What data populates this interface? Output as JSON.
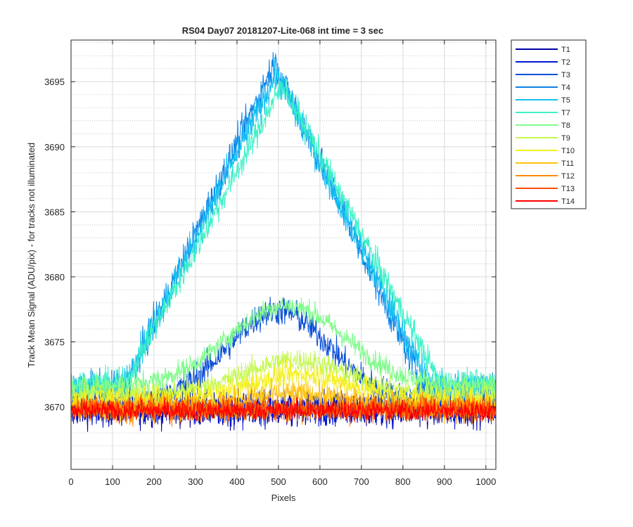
{
  "chart_data": {
    "type": "line",
    "title": "RS04 Day07 20181207-Lite-068 int time = 3 sec",
    "xlabel": "Pixels",
    "ylabel": "Track Mean Signal (ADU/pix) - for tracks not illuminated",
    "xlim": [
      0,
      1024
    ],
    "ylim": [
      3665.2,
      3698.2
    ],
    "xticks": [
      0,
      100,
      200,
      300,
      400,
      500,
      600,
      700,
      800,
      900,
      1000
    ],
    "yticks": [
      3670,
      3675,
      3680,
      3685,
      3690,
      3695
    ],
    "grid": true,
    "minor_grid": true,
    "legend_position": "outside-top-right",
    "series": [
      {
        "name": "T1",
        "color": "#0000aa",
        "profile": "flat",
        "baseline": 3669.8,
        "peak_x": 512,
        "peak_height": 0,
        "width": 200,
        "noise": 1.7
      },
      {
        "name": "T2",
        "color": "#0018d6",
        "profile": "flat",
        "baseline": 3669.9,
        "peak_x": 512,
        "peak_height": 0,
        "width": 200,
        "noise": 1.7
      },
      {
        "name": "T3",
        "color": "#0a4ed8",
        "profile": "bump",
        "baseline": 3670.4,
        "peak_x": 500,
        "peak_height": 7.0,
        "width": 220,
        "noise": 1.5
      },
      {
        "name": "T4",
        "color": "#0a82e6",
        "profile": "triangle",
        "baseline": 3671.5,
        "peak_x": 490,
        "peak_height": 25.0,
        "width": 360,
        "noise": 1.6
      },
      {
        "name": "T5",
        "color": "#14bff2",
        "profile": "triangle",
        "baseline": 3671.6,
        "peak_x": 495,
        "peak_height": 24.0,
        "width": 370,
        "noise": 1.6
      },
      {
        "name": "T7",
        "color": "#3cf0c8",
        "profile": "triangle",
        "baseline": 3671.8,
        "peak_x": 510,
        "peak_height": 23.0,
        "width": 380,
        "noise": 1.4
      },
      {
        "name": "T8",
        "color": "#7efb8a",
        "profile": "bump",
        "baseline": 3671.6,
        "peak_x": 520,
        "peak_height": 6.2,
        "width": 250,
        "noise": 1.1
      },
      {
        "name": "T9",
        "color": "#c3f84c",
        "profile": "bump",
        "baseline": 3671.0,
        "peak_x": 540,
        "peak_height": 2.6,
        "width": 220,
        "noise": 1.2
      },
      {
        "name": "T10",
        "color": "#f5f01e",
        "profile": "bump",
        "baseline": 3670.5,
        "peak_x": 550,
        "peak_height": 2.0,
        "width": 220,
        "noise": 1.2
      },
      {
        "name": "T11",
        "color": "#ffc20a",
        "profile": "bump",
        "baseline": 3670.0,
        "peak_x": 540,
        "peak_height": 1.0,
        "width": 220,
        "noise": 1.3
      },
      {
        "name": "T12",
        "color": "#ff8a00",
        "profile": "flat",
        "baseline": 3669.8,
        "peak_x": 512,
        "peak_height": 0,
        "width": 200,
        "noise": 1.3
      },
      {
        "name": "T13",
        "color": "#ff4b00",
        "profile": "flat",
        "baseline": 3669.9,
        "peak_x": 512,
        "peak_height": 0,
        "width": 200,
        "noise": 1.1
      },
      {
        "name": "T14",
        "color": "#ff0000",
        "profile": "flat",
        "baseline": 3669.7,
        "peak_x": 512,
        "peak_height": 0,
        "width": 200,
        "noise": 1.0
      }
    ]
  }
}
